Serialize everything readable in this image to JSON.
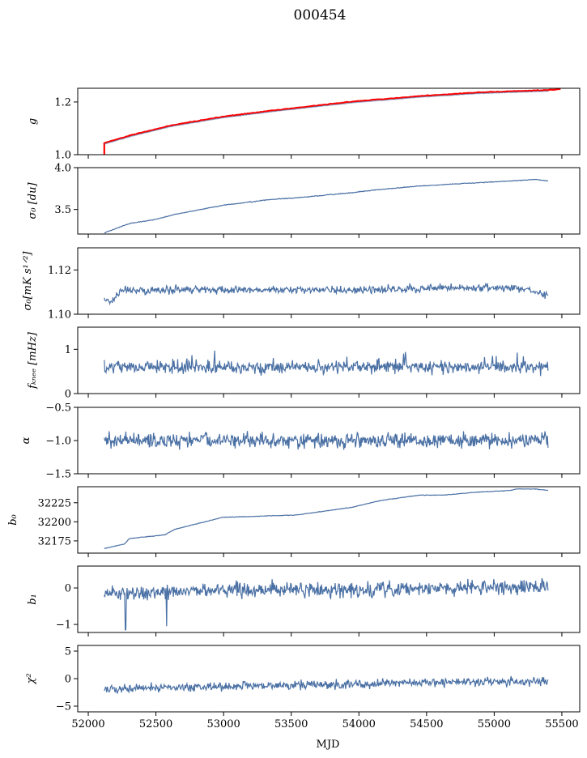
{
  "chart_data": {
    "type": "line",
    "title": "000454",
    "xlabel": "MJD",
    "xlim": [
      51922,
      55632
    ],
    "xticks": [
      52000,
      52500,
      53000,
      53500,
      54000,
      54500,
      55000,
      55500
    ],
    "xtick_labels": [
      "52000",
      "52500",
      "53000",
      "53500",
      "54000",
      "54500",
      "55000",
      "55500"
    ],
    "x_range": [
      52118,
      55398
    ],
    "series_color": "#4a70a4",
    "reference_color": "#ff0000",
    "panels": [
      {
        "ylabel": "g",
        "ylim": [
          1.0,
          1.252
        ],
        "yticks": [
          1.0,
          1.2
        ],
        "ytick_labels": [
          "1.0",
          "1.2"
        ],
        "trend_x": [
          52118,
          52303,
          52613,
          52995,
          53353,
          53948,
          54450,
          54879,
          55398
        ],
        "trend_y": [
          1.04,
          1.068,
          1.107,
          1.14,
          1.163,
          1.197,
          1.218,
          1.232,
          1.241
        ],
        "noise": 0.0008,
        "reference": {
          "x": [
            52118,
            52303,
            52613,
            52995,
            53353,
            53948,
            54450,
            54879,
            55398,
            55490
          ],
          "y": [
            1.044,
            1.072,
            1.111,
            1.144,
            1.167,
            1.201,
            1.222,
            1.236,
            1.245,
            1.249
          ],
          "start_drop_to": 1.0
        }
      },
      {
        "ylabel": "σ₀ [du]",
        "ylim": [
          3.206,
          4.0
        ],
        "yticks": [
          3.5,
          4.0
        ],
        "ytick_labels": [
          "3.5",
          "4.0"
        ],
        "trend_x": [
          52118,
          52303,
          52494,
          52637,
          52995,
          53353,
          53542,
          53948,
          54163,
          54450,
          54879,
          55117,
          55307,
          55398
        ],
        "trend_y": [
          3.22,
          3.33,
          3.38,
          3.44,
          3.55,
          3.62,
          3.64,
          3.7,
          3.74,
          3.78,
          3.82,
          3.84,
          3.86,
          3.84
        ],
        "noise": 0.003
      },
      {
        "ylabel": "σ₀[mK s¹ᐟ²]",
        "ylim": [
          1.1,
          1.13
        ],
        "yticks": [
          1.1,
          1.12
        ],
        "ytick_labels": [
          "1.10",
          "1.12"
        ],
        "trend_x": [
          52118,
          52160,
          52250,
          53000,
          54000,
          54700,
          55200,
          55330,
          55398
        ],
        "trend_y": [
          1.107,
          1.105,
          1.111,
          1.111,
          1.111,
          1.112,
          1.112,
          1.11,
          1.108
        ],
        "noise": 0.0012
      },
      {
        "ylabel": "fₖₙₑₑ [mHz]",
        "ylim": [
          0,
          1.5
        ],
        "yticks": [
          0,
          1
        ],
        "ytick_labels": [
          "0",
          "1"
        ],
        "trend_x": [
          52118,
          55398
        ],
        "trend_y": [
          0.6,
          0.6
        ],
        "noise": 0.1
      },
      {
        "ylabel": "α",
        "ylim": [
          -1.5,
          -0.5
        ],
        "yticks": [
          -1.5,
          -1.0,
          -0.5
        ],
        "ytick_labels": [
          "−1.5",
          "−1.0",
          "−0.5"
        ],
        "trend_x": [
          52118,
          55398
        ],
        "trend_y": [
          -1.0,
          -1.0
        ],
        "noise": 0.08
      },
      {
        "ylabel": "b₀",
        "ylim": [
          32159,
          32246
        ],
        "yticks": [
          32175,
          32200,
          32225
        ],
        "ytick_labels": [
          "32175",
          "32200",
          "32225"
        ],
        "trend_x": [
          52118,
          52268,
          52303,
          52566,
          52637,
          52995,
          53210,
          53542,
          53948,
          54163,
          54450,
          54635,
          54879,
          55117,
          55160,
          55307,
          55398
        ],
        "trend_y": [
          32165,
          32171,
          32178,
          32183,
          32190,
          32206,
          32207,
          32209,
          32219,
          32228,
          32235,
          32235,
          32239,
          32241,
          32243,
          32243,
          32241
        ],
        "noise": 0.25
      },
      {
        "ylabel": "b₁",
        "ylim": [
          -1.22,
          0.6
        ],
        "yticks": [
          -1,
          0
        ],
        "ytick_labels": [
          "−1",
          "0"
        ],
        "trend_x": [
          52118,
          52300,
          53000,
          54000,
          55398
        ],
        "trend_y": [
          -0.15,
          -0.15,
          -0.05,
          -0.05,
          0.05
        ],
        "noise": 0.14,
        "spikes": [
          {
            "x": 52275,
            "y": -1.15
          },
          {
            "x": 52578,
            "y": -1.05
          }
        ]
      },
      {
        "ylabel": "χ²",
        "ylim": [
          -6.03,
          6.03
        ],
        "yticks": [
          -5,
          0,
          5
        ],
        "ytick_labels": [
          "−5",
          "0",
          "5"
        ],
        "trend_x": [
          52118,
          52500,
          53500,
          54500,
          55398
        ],
        "trend_y": [
          -2.0,
          -1.7,
          -1.2,
          -0.7,
          -0.5
        ],
        "noise": 0.55
      }
    ]
  }
}
